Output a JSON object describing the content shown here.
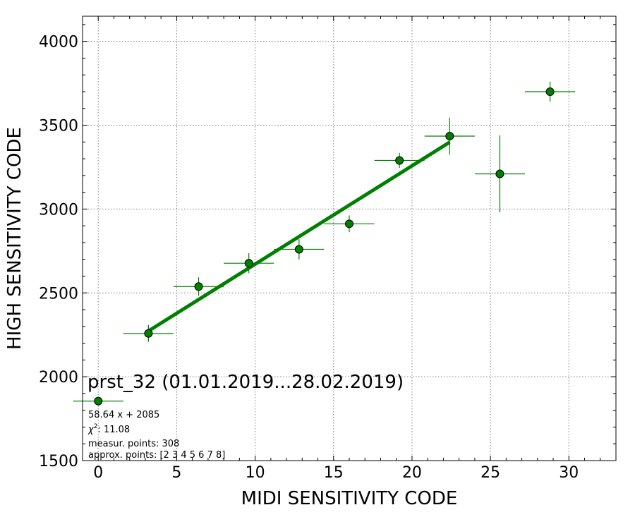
{
  "chart_data": {
    "type": "scatter",
    "title": "prst_32 (01.01.2019...28.02.2019)",
    "xlabel": "MIDI SENSITIVITY CODE",
    "ylabel": "HIGH SENSITIVITY CODE",
    "xlim": [
      -1,
      33
    ],
    "ylim": [
      1500,
      4150
    ],
    "x_ticks": [
      0,
      5,
      10,
      15,
      20,
      25,
      30
    ],
    "y_ticks": [
      1500,
      2000,
      2500,
      3000,
      3500,
      4000
    ],
    "grid": true,
    "points": [
      {
        "x": 0,
        "y": 1855,
        "xerr": 1.6,
        "yerr": 0
      },
      {
        "x": 3.2,
        "y": 2258,
        "xerr": 1.6,
        "yerr": 50
      },
      {
        "x": 6.4,
        "y": 2538,
        "xerr": 1.6,
        "yerr": 55
      },
      {
        "x": 9.6,
        "y": 2677,
        "xerr": 1.6,
        "yerr": 60
      },
      {
        "x": 12.8,
        "y": 2760,
        "xerr": 1.6,
        "yerr": 60
      },
      {
        "x": 16.0,
        "y": 2912,
        "xerr": 1.6,
        "yerr": 50
      },
      {
        "x": 19.2,
        "y": 3290,
        "xerr": 1.6,
        "yerr": 45
      },
      {
        "x": 22.4,
        "y": 3435,
        "xerr": 1.6,
        "yerr": 110
      },
      {
        "x": 25.6,
        "y": 3210,
        "xerr": 1.6,
        "yerr": 230
      },
      {
        "x": 28.8,
        "y": 3700,
        "xerr": 1.6,
        "yerr": 60
      }
    ],
    "fit": {
      "slope": 58.64,
      "intercept": 2085,
      "x_range": [
        3.2,
        22.4
      ]
    },
    "annotations": {
      "equation": "58.64 x + 2085",
      "chi2_label": "χ",
      "chi2_exp": "2",
      "chi2_value": ": 11.08",
      "measur_points": "measur. points: 308",
      "approx_points": "approx. points: [2 3 4 5 6 7 8]"
    },
    "colors": {
      "marker_fill": "#008000",
      "marker_edge": "#000000",
      "errorbar": "#008000",
      "fit_line": "#008000",
      "grid": "#808080"
    }
  }
}
